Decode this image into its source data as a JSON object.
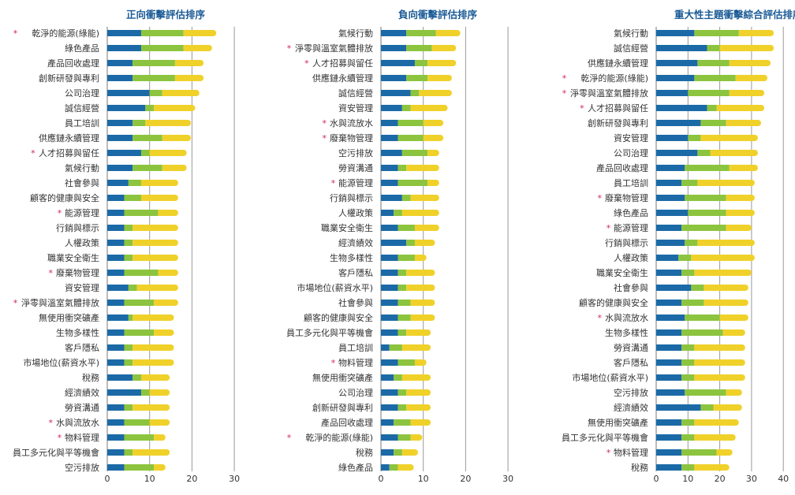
{
  "colors": {
    "seg1": "#1b6aa7",
    "seg2": "#8cc43f",
    "seg3": "#f0d12a",
    "star": "#d0246b",
    "title": "#1a5a96"
  },
  "chart_data": [
    {
      "type": "bar",
      "orientation": "horizontal",
      "stacked": true,
      "title": "正向衝擊評估排序",
      "xlim": [
        0,
        30
      ],
      "xticks": [
        "0",
        "10",
        "20",
        "30"
      ],
      "grid": true,
      "categories": [
        "乾淨的能源(綠能)",
        "綠色產品",
        "產品回收處理",
        "創新研發與專利",
        "公司治理",
        "誠信經營",
        "員工培訓",
        "供應鏈永續管理",
        "人才招募與留任",
        "氣候行動",
        "社會參與",
        "顧客的健康與安全",
        "能源管理",
        "行銷與標示",
        "人權政策",
        "職業安全衛生",
        "廢棄物管理",
        "資安管理",
        "淨零與溫室氣體排放",
        "無使用衝突礦產",
        "生物多樣性",
        "客戶隱私",
        "市場地位(薪資水平)",
        "稅務",
        "經濟績效",
        "勞資溝通",
        "水與流放水",
        "物料管理",
        "員工多元化與平等機會",
        "空污排放"
      ],
      "starred": [
        true,
        false,
        false,
        false,
        false,
        false,
        false,
        false,
        true,
        false,
        false,
        false,
        true,
        false,
        false,
        false,
        true,
        false,
        true,
        false,
        false,
        false,
        false,
        false,
        false,
        false,
        true,
        true,
        false,
        false
      ],
      "series": [
        {
          "values": [
            8,
            8,
            6,
            6,
            10,
            9,
            6,
            6,
            8,
            6,
            5,
            4,
            4,
            4,
            4,
            4,
            4,
            5,
            4,
            5,
            4,
            4,
            4,
            6,
            8,
            4,
            4,
            4,
            4,
            4
          ]
        },
        {
          "values": [
            10,
            10,
            10,
            10,
            3,
            2,
            3,
            7,
            2,
            7,
            3,
            4,
            8,
            2,
            2,
            2,
            8,
            2,
            7,
            1,
            7,
            2,
            2,
            2,
            2,
            2,
            6,
            7,
            2,
            7
          ]
        },
        {
          "values": [
            7,
            6,
            6,
            6,
            8,
            9,
            10,
            6,
            8,
            5,
            8,
            8,
            4,
            10,
            10,
            10,
            4,
            9,
            5,
            9,
            4,
            9,
            9,
            6,
            4,
            8,
            4,
            2,
            8,
            2
          ]
        }
      ]
    },
    {
      "type": "bar",
      "orientation": "horizontal",
      "stacked": true,
      "title": "負向衝擊評估排序",
      "xlim": [
        0,
        30
      ],
      "xticks": [
        "0",
        "10",
        "20",
        "30"
      ],
      "grid": true,
      "categories": [
        "氣候行動",
        "淨零與溫室氣體排放",
        "人才招募與留任",
        "供應鏈永續管理",
        "誠信經營",
        "資安管理",
        "水與流放水",
        "廢棄物管理",
        "空污排放",
        "勞資溝通",
        "能源管理",
        "行銷與標示",
        "人權政策",
        "職業安全衛生",
        "經濟績效",
        "生物多樣性",
        "客戶隱私",
        "市場地位(薪資水平)",
        "社會參與",
        "顧客的健康與安全",
        "員工多元化與平等機會",
        "員工培訓",
        "物料管理",
        "無使用衝突礦產",
        "公司治理",
        "創新研發與專利",
        "產品回收處理",
        "乾淨的能源(綠能)",
        "稅務",
        "綠色產品"
      ],
      "starred": [
        false,
        true,
        true,
        false,
        false,
        false,
        true,
        true,
        false,
        false,
        true,
        false,
        false,
        false,
        false,
        false,
        false,
        false,
        false,
        false,
        false,
        false,
        true,
        false,
        false,
        false,
        false,
        true,
        false,
        false
      ],
      "series": [
        {
          "values": [
            6,
            6,
            8,
            6,
            7,
            5,
            4,
            4,
            5,
            4,
            4,
            5,
            3,
            4,
            6,
            4,
            4,
            4,
            4,
            4,
            4,
            2,
            4,
            3,
            4,
            4,
            3,
            4,
            3,
            2
          ]
        },
        {
          "values": [
            7,
            6,
            3,
            5,
            2,
            2,
            6,
            6,
            6,
            2,
            7,
            2,
            2,
            4,
            2,
            4,
            2,
            2,
            3,
            3,
            2,
            3,
            4,
            2,
            2,
            2,
            4,
            3,
            2,
            2
          ]
        },
        {
          "values": [
            5,
            5,
            6,
            5,
            7,
            8,
            4,
            4,
            2,
            7,
            2,
            6,
            8,
            5,
            4,
            2,
            6,
            6,
            5,
            5,
            5,
            6,
            2,
            6,
            5,
            5,
            4,
            2,
            3,
            3
          ]
        }
      ]
    },
    {
      "type": "bar",
      "orientation": "horizontal",
      "stacked": true,
      "title": "重大性主題衝擊綜合評估排序",
      "xlim": [
        0,
        40
      ],
      "xticks": [
        "0",
        "10",
        "20",
        "30",
        "40"
      ],
      "grid": true,
      "categories": [
        "氣候行動",
        "誠信經營",
        "供應鏈永續管理",
        "乾淨的能源(綠能)",
        "淨零與溫室氣體排放",
        "人才招募與留任",
        "創新研發與專利",
        "資安管理",
        "公司治理",
        "產品回收處理",
        "員工培訓",
        "廢棄物管理",
        "綠色產品",
        "能源管理",
        "行銷與標示",
        "人權政策",
        "職業安全衛生",
        "社會參與",
        "顧客的健康與安全",
        "水與流放水",
        "生物多樣性",
        "勞資溝通",
        "客戶隱私",
        "市場地位(薪資水平)",
        "空污排放",
        "經濟績效",
        "無使用衝突礦產",
        "員工多元化與平等機會",
        "物料管理",
        "稅務"
      ],
      "starred": [
        false,
        false,
        false,
        true,
        true,
        true,
        false,
        false,
        false,
        false,
        false,
        true,
        false,
        true,
        false,
        false,
        false,
        false,
        false,
        true,
        false,
        false,
        false,
        false,
        false,
        false,
        false,
        false,
        true,
        false
      ],
      "series": [
        {
          "values": [
            12,
            16,
            13,
            12,
            10,
            16,
            14,
            10,
            13,
            9,
            8,
            9,
            10,
            8,
            9,
            7,
            8,
            11,
            8,
            9,
            8,
            8,
            8,
            8,
            9,
            14,
            8,
            8,
            8,
            8
          ]
        },
        {
          "values": [
            14,
            4,
            10,
            13,
            13,
            3,
            8,
            4,
            4,
            14,
            5,
            13,
            12,
            14,
            4,
            4,
            4,
            4,
            7,
            11,
            13,
            4,
            4,
            4,
            13,
            4,
            4,
            4,
            11,
            4
          ]
        },
        {
          "values": [
            10,
            16,
            12,
            9,
            10,
            14,
            10,
            17,
            14,
            8,
            17,
            8,
            8,
            7,
            17,
            19,
            17,
            13,
            13,
            8,
            6,
            15,
            15,
            15,
            4,
            8,
            13,
            12,
            4,
            10
          ]
        }
      ]
    }
  ]
}
